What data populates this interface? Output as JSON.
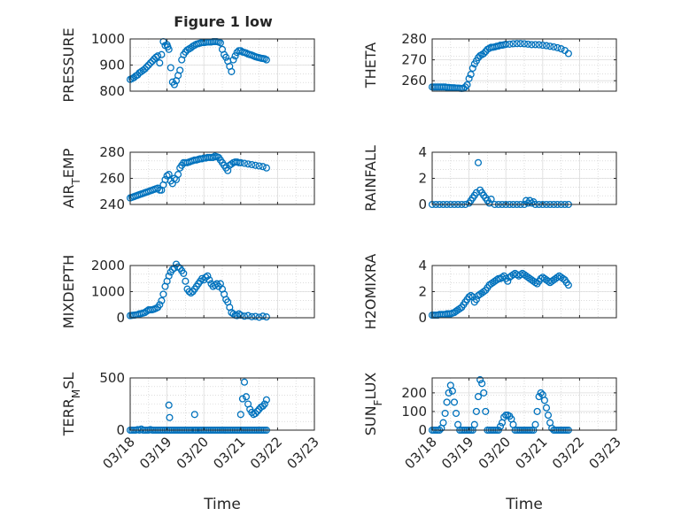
{
  "figure": {
    "title": "Figure 1 low",
    "background": "#ffffff"
  },
  "colors": {
    "marker": "#0072BD",
    "axis": "#262626",
    "grid": "#c8c8c8"
  },
  "chart_data": [
    {
      "type": "scatter",
      "ylabel": "PRESSURE",
      "ylim": [
        800,
        1000
      ],
      "yticks": [
        800,
        900,
        1000
      ],
      "xlim": [
        0,
        5
      ],
      "xticks": [],
      "grid": true,
      "x": [
        0,
        0.05,
        0.1,
        0.15,
        0.2,
        0.25,
        0.3,
        0.35,
        0.4,
        0.45,
        0.5,
        0.55,
        0.6,
        0.65,
        0.7,
        0.75,
        0.8,
        0.85,
        0.9,
        0.95,
        1.0,
        1.02,
        1.05,
        1.1,
        1.15,
        1.2,
        1.25,
        1.3,
        1.35,
        1.4,
        1.45,
        1.5,
        1.55,
        1.6,
        1.65,
        1.7,
        1.75,
        1.8,
        1.85,
        1.9,
        1.95,
        2.0,
        2.05,
        2.1,
        2.15,
        2.2,
        2.25,
        2.3,
        2.35,
        2.4,
        2.45,
        2.5,
        2.55,
        2.6,
        2.65,
        2.7,
        2.75,
        2.8,
        2.85,
        2.9,
        2.95,
        3.0,
        3.05,
        3.1,
        3.15,
        3.2,
        3.25,
        3.3,
        3.35,
        3.4,
        3.45,
        3.5,
        3.55,
        3.6,
        3.65,
        3.7
      ],
      "y": [
        845,
        848,
        852,
        858,
        862,
        870,
        875,
        880,
        885,
        893,
        900,
        908,
        915,
        923,
        930,
        935,
        908,
        940,
        990,
        975,
        978,
        970,
        960,
        890,
        835,
        825,
        840,
        860,
        880,
        920,
        940,
        950,
        958,
        962,
        966,
        972,
        976,
        980,
        982,
        984,
        986,
        986,
        987,
        988,
        988,
        988,
        990,
        990,
        990,
        988,
        985,
        960,
        940,
        930,
        915,
        895,
        875,
        920,
        935,
        948,
        955,
        955,
        950,
        948,
        946,
        942,
        940,
        938,
        935,
        932,
        930,
        928,
        926,
        925,
        924,
        920
      ]
    },
    {
      "type": "scatter",
      "ylabel": "THETA",
      "ylim": [
        255,
        280
      ],
      "yticks": [
        260,
        270,
        280
      ],
      "xlim": [
        0,
        5
      ],
      "xticks": [],
      "grid": true,
      "x": [
        0,
        0.05,
        0.1,
        0.15,
        0.2,
        0.25,
        0.3,
        0.35,
        0.4,
        0.45,
        0.5,
        0.55,
        0.6,
        0.65,
        0.7,
        0.75,
        0.8,
        0.85,
        0.9,
        0.95,
        1.0,
        1.05,
        1.1,
        1.15,
        1.2,
        1.25,
        1.3,
        1.35,
        1.4,
        1.45,
        1.5,
        1.55,
        1.6,
        1.65,
        1.7,
        1.75,
        1.8,
        1.85,
        1.9,
        1.95,
        2.0,
        2.1,
        2.2,
        2.3,
        2.4,
        2.5,
        2.6,
        2.7,
        2.8,
        2.9,
        3.0,
        3.1,
        3.2,
        3.3,
        3.4,
        3.5,
        3.6,
        3.7
      ],
      "y": [
        257,
        257,
        257,
        257,
        257,
        257,
        257,
        257,
        256.8,
        256.8,
        256.7,
        256.6,
        256.6,
        256.5,
        256.5,
        256.4,
        256.3,
        256.4,
        257,
        258,
        261,
        263,
        266,
        268,
        269.5,
        271,
        272,
        272.5,
        273,
        274,
        275,
        275.5,
        276,
        276,
        276.2,
        276.5,
        276.6,
        277,
        277,
        277.2,
        277.4,
        277.5,
        277.7,
        277.8,
        277.8,
        277.7,
        277.5,
        277.3,
        277.3,
        277.2,
        277,
        276.8,
        276.5,
        276.2,
        275.8,
        275.3,
        274.5,
        273
      ]
    },
    {
      "type": "scatter",
      "ylabel": "AIR_TEMP",
      "ylabel_main": "AIR",
      "ylabel_sub": "T",
      "ylabel_rest": "EMP",
      "ylim": [
        240,
        280
      ],
      "yticks": [
        240,
        260,
        280
      ],
      "xlim": [
        0,
        5
      ],
      "xticks": [],
      "grid": true,
      "x": [
        0,
        0.05,
        0.1,
        0.15,
        0.2,
        0.25,
        0.3,
        0.35,
        0.4,
        0.45,
        0.5,
        0.55,
        0.6,
        0.65,
        0.7,
        0.75,
        0.8,
        0.85,
        0.9,
        0.95,
        1.0,
        1.05,
        1.1,
        1.15,
        1.2,
        1.25,
        1.3,
        1.35,
        1.4,
        1.45,
        1.5,
        1.55,
        1.6,
        1.65,
        1.7,
        1.75,
        1.8,
        1.85,
        1.9,
        1.95,
        2.0,
        2.05,
        2.1,
        2.15,
        2.2,
        2.25,
        2.3,
        2.35,
        2.4,
        2.45,
        2.5,
        2.55,
        2.6,
        2.65,
        2.7,
        2.75,
        2.8,
        2.85,
        2.9,
        2.95,
        3.0,
        3.1,
        3.2,
        3.3,
        3.4,
        3.5,
        3.6,
        3.7
      ],
      "y": [
        245,
        245.5,
        246,
        246.5,
        247,
        247.5,
        248,
        248.5,
        249,
        249.5,
        250,
        250.5,
        251,
        251.5,
        252,
        252.5,
        251,
        251,
        255,
        259,
        262,
        263,
        258,
        256,
        260,
        259,
        263,
        268,
        270,
        272,
        272,
        272,
        272.5,
        273,
        273.5,
        274,
        274,
        274.5,
        275,
        275,
        275.5,
        275.5,
        276,
        276,
        276,
        276,
        277,
        276.5,
        276,
        274,
        272,
        270,
        268,
        266,
        270,
        271,
        272,
        272.5,
        272.5,
        272,
        272,
        271.5,
        271,
        270.5,
        270,
        269.5,
        269,
        268
      ]
    },
    {
      "type": "scatter",
      "ylabel": "RAINFALL",
      "ylim": [
        0,
        4
      ],
      "yticks": [
        0,
        2,
        4
      ],
      "xlim": [
        0,
        5
      ],
      "xticks": [],
      "grid": true,
      "x": [
        0,
        0.1,
        0.2,
        0.3,
        0.4,
        0.5,
        0.6,
        0.7,
        0.8,
        0.9,
        1.0,
        1.05,
        1.1,
        1.15,
        1.2,
        1.25,
        1.3,
        1.35,
        1.4,
        1.45,
        1.5,
        1.55,
        1.6,
        1.7,
        1.8,
        1.9,
        2.0,
        2.1,
        2.2,
        2.3,
        2.4,
        2.5,
        2.55,
        2.6,
        2.65,
        2.7,
        2.75,
        2.8,
        2.9,
        3.0,
        3.1,
        3.2,
        3.3,
        3.4,
        3.5,
        3.6,
        3.7
      ],
      "y": [
        0,
        0,
        0,
        0,
        0,
        0,
        0,
        0,
        0,
        0,
        0.1,
        0.3,
        0.5,
        0.7,
        0.9,
        3.2,
        1.1,
        0.9,
        0.7,
        0.5,
        0.3,
        0.1,
        0.4,
        0,
        0,
        0,
        0,
        0,
        0,
        0,
        0,
        0,
        0.3,
        0.1,
        0.3,
        0.1,
        0.2,
        0,
        0,
        0,
        0,
        0,
        0,
        0,
        0,
        0,
        0
      ]
    },
    {
      "type": "scatter",
      "ylabel": "MIXDEPTH",
      "ylim": [
        0,
        2000
      ],
      "yticks": [
        0,
        1000,
        2000
      ],
      "xlim": [
        0,
        5
      ],
      "xticks": [],
      "grid": true,
      "x": [
        0,
        0.05,
        0.1,
        0.15,
        0.2,
        0.25,
        0.3,
        0.35,
        0.4,
        0.45,
        0.5,
        0.55,
        0.6,
        0.65,
        0.7,
        0.75,
        0.8,
        0.85,
        0.9,
        0.95,
        1.0,
        1.05,
        1.1,
        1.15,
        1.2,
        1.25,
        1.3,
        1.35,
        1.4,
        1.45,
        1.5,
        1.55,
        1.6,
        1.65,
        1.7,
        1.75,
        1.8,
        1.85,
        1.9,
        1.95,
        2.0,
        2.05,
        2.1,
        2.15,
        2.2,
        2.25,
        2.3,
        2.35,
        2.4,
        2.45,
        2.5,
        2.55,
        2.6,
        2.65,
        2.7,
        2.75,
        2.8,
        2.85,
        2.9,
        2.95,
        3.0,
        3.1,
        3.2,
        3.3,
        3.4,
        3.5,
        3.6,
        3.7
      ],
      "y": [
        80,
        90,
        100,
        110,
        120,
        150,
        160,
        180,
        200,
        250,
        300,
        300,
        310,
        330,
        360,
        400,
        500,
        650,
        900,
        1200,
        1400,
        1600,
        1750,
        1850,
        1900,
        2050,
        1950,
        1900,
        1800,
        1700,
        1400,
        1100,
        1000,
        950,
        1000,
        1100,
        1200,
        1300,
        1400,
        1500,
        1450,
        1550,
        1600,
        1450,
        1300,
        1200,
        1250,
        1300,
        1200,
        1300,
        1100,
        900,
        700,
        600,
        400,
        200,
        150,
        100,
        80,
        150,
        100,
        60,
        80,
        40,
        50,
        20,
        60,
        30
      ]
    },
    {
      "type": "scatter",
      "ylabel": "H2OMIXRA",
      "ylim": [
        0,
        4
      ],
      "yticks": [
        0,
        2,
        4
      ],
      "xlim": [
        0,
        5
      ],
      "xticks": [],
      "grid": true,
      "x": [
        0,
        0.05,
        0.1,
        0.15,
        0.2,
        0.25,
        0.3,
        0.35,
        0.4,
        0.45,
        0.5,
        0.55,
        0.6,
        0.65,
        0.7,
        0.75,
        0.8,
        0.85,
        0.9,
        0.95,
        1.0,
        1.05,
        1.1,
        1.15,
        1.2,
        1.25,
        1.3,
        1.35,
        1.4,
        1.45,
        1.5,
        1.55,
        1.6,
        1.65,
        1.7,
        1.75,
        1.8,
        1.85,
        1.9,
        1.95,
        2.0,
        2.05,
        2.1,
        2.15,
        2.2,
        2.25,
        2.3,
        2.35,
        2.4,
        2.45,
        2.5,
        2.55,
        2.6,
        2.65,
        2.7,
        2.75,
        2.8,
        2.85,
        2.9,
        2.95,
        3.0,
        3.05,
        3.1,
        3.15,
        3.2,
        3.25,
        3.3,
        3.35,
        3.4,
        3.45,
        3.5,
        3.55,
        3.6,
        3.65,
        3.7
      ],
      "y": [
        0.2,
        0.2,
        0.2,
        0.2,
        0.25,
        0.25,
        0.25,
        0.25,
        0.3,
        0.3,
        0.3,
        0.35,
        0.4,
        0.5,
        0.6,
        0.7,
        0.8,
        1.0,
        1.2,
        1.4,
        1.6,
        1.7,
        1.6,
        1.2,
        1.4,
        1.7,
        1.8,
        1.9,
        2.0,
        2.1,
        2.3,
        2.5,
        2.6,
        2.7,
        2.8,
        2.9,
        3.0,
        3.0,
        3.1,
        3.2,
        3.0,
        2.8,
        3.1,
        3.2,
        3.3,
        3.4,
        3.3,
        3.2,
        3.3,
        3.4,
        3.3,
        3.2,
        3.1,
        3.0,
        2.9,
        2.8,
        2.7,
        2.6,
        2.8,
        3.0,
        3.1,
        3.0,
        2.9,
        2.8,
        2.7,
        2.8,
        2.9,
        3.0,
        3.1,
        3.2,
        3.1,
        3.0,
        2.9,
        2.7,
        2.5
      ]
    },
    {
      "type": "scatter",
      "ylabel": "TERR_MSL",
      "ylabel_main": "TERR",
      "ylabel_sub": "M",
      "ylabel_rest": "SL",
      "ylim": [
        0,
        500
      ],
      "yticks": [
        0,
        500
      ],
      "xlim": [
        0,
        5
      ],
      "xticks": [
        "03/18",
        "03/19",
        "03/20",
        "03/21",
        "03/22",
        "03/23"
      ],
      "xlabel": "Time",
      "grid": true,
      "x": [
        0,
        0.05,
        0.1,
        0.15,
        0.2,
        0.25,
        0.3,
        0.35,
        0.4,
        0.45,
        0.5,
        0.55,
        0.6,
        0.65,
        0.7,
        0.75,
        0.8,
        0.85,
        0.9,
        0.95,
        1.0,
        1.05,
        1.1,
        1.15,
        1.2,
        1.25,
        1.3,
        1.35,
        1.4,
        1.45,
        1.5,
        1.55,
        1.6,
        1.65,
        1.7,
        1.75,
        1.8,
        1.85,
        1.9,
        1.95,
        2.0,
        2.05,
        2.1,
        2.15,
        2.2,
        2.25,
        2.3,
        2.35,
        2.4,
        2.45,
        2.5,
        2.55,
        2.6,
        2.65,
        2.7,
        2.75,
        2.8,
        2.85,
        2.9,
        2.95,
        3.0,
        3.05,
        3.1,
        3.15,
        3.2,
        3.25,
        3.3,
        3.35,
        3.4,
        3.45,
        3.5,
        3.55,
        3.6,
        3.65,
        3.7,
        1.05,
        1.07,
        1.75,
        1.77,
        3.0,
        3.05,
        3.1,
        3.15,
        3.2,
        3.25,
        3.3,
        3.35,
        3.4,
        3.45,
        3.5,
        3.55,
        3.6,
        3.65,
        3.7
      ],
      "y": [
        0,
        0,
        0,
        0,
        5,
        0,
        10,
        0,
        0,
        0,
        0,
        5,
        0,
        0,
        0,
        0,
        0,
        0,
        0,
        0,
        0,
        0,
        0,
        0,
        0,
        0,
        0,
        0,
        0,
        0,
        0,
        0,
        0,
        0,
        0,
        0,
        0,
        0,
        0,
        0,
        0,
        0,
        0,
        0,
        0,
        0,
        0,
        0,
        0,
        0,
        0,
        0,
        0,
        0,
        0,
        0,
        0,
        0,
        0,
        0,
        0,
        0,
        0,
        0,
        0,
        0,
        0,
        0,
        0,
        0,
        0,
        0,
        0,
        0,
        0,
        240,
        120,
        150,
        0,
        150,
        300,
        460,
        320,
        250,
        200,
        170,
        150,
        160,
        180,
        200,
        220,
        230,
        250,
        290
      ]
    },
    {
      "type": "scatter",
      "ylabel": "SUN_FLUX",
      "ylabel_main": "SUN",
      "ylabel_sub": "F",
      "ylabel_rest": "LUX",
      "ylim": [
        0,
        280
      ],
      "yticks": [
        0,
        100,
        200
      ],
      "xlim": [
        0,
        5
      ],
      "xticks": [
        "03/18",
        "03/19",
        "03/20",
        "03/21",
        "03/22",
        "03/23"
      ],
      "xlabel": "Time",
      "grid": true,
      "x": [
        0,
        0.05,
        0.1,
        0.15,
        0.2,
        0.25,
        0.3,
        0.35,
        0.4,
        0.45,
        0.5,
        0.55,
        0.6,
        0.65,
        0.7,
        0.75,
        0.8,
        0.85,
        0.9,
        0.95,
        1.0,
        1.05,
        1.1,
        1.15,
        1.2,
        1.25,
        1.3,
        1.35,
        1.4,
        1.45,
        1.5,
        1.55,
        1.6,
        1.65,
        1.7,
        1.75,
        1.8,
        1.85,
        1.9,
        1.95,
        2.0,
        2.05,
        2.1,
        2.15,
        2.2,
        2.25,
        2.3,
        2.35,
        2.4,
        2.45,
        2.5,
        2.55,
        2.6,
        2.65,
        2.7,
        2.75,
        2.8,
        2.85,
        2.9,
        2.95,
        3.0,
        3.05,
        3.1,
        3.15,
        3.2,
        3.25,
        3.3,
        3.35,
        3.4,
        3.45,
        3.5,
        3.55,
        3.6,
        3.65,
        3.7
      ],
      "y": [
        0,
        0,
        0,
        0,
        0,
        10,
        40,
        90,
        150,
        200,
        240,
        210,
        150,
        90,
        30,
        0,
        0,
        0,
        0,
        0,
        0,
        0,
        0,
        30,
        100,
        180,
        270,
        250,
        200,
        100,
        0,
        0,
        0,
        0,
        0,
        0,
        0,
        20,
        40,
        70,
        80,
        80,
        75,
        60,
        30,
        0,
        0,
        0,
        0,
        0,
        0,
        0,
        0,
        0,
        0,
        0,
        30,
        100,
        180,
        200,
        190,
        160,
        120,
        80,
        40,
        10,
        0,
        0,
        0,
        0,
        0,
        0,
        0,
        0,
        0
      ]
    }
  ]
}
